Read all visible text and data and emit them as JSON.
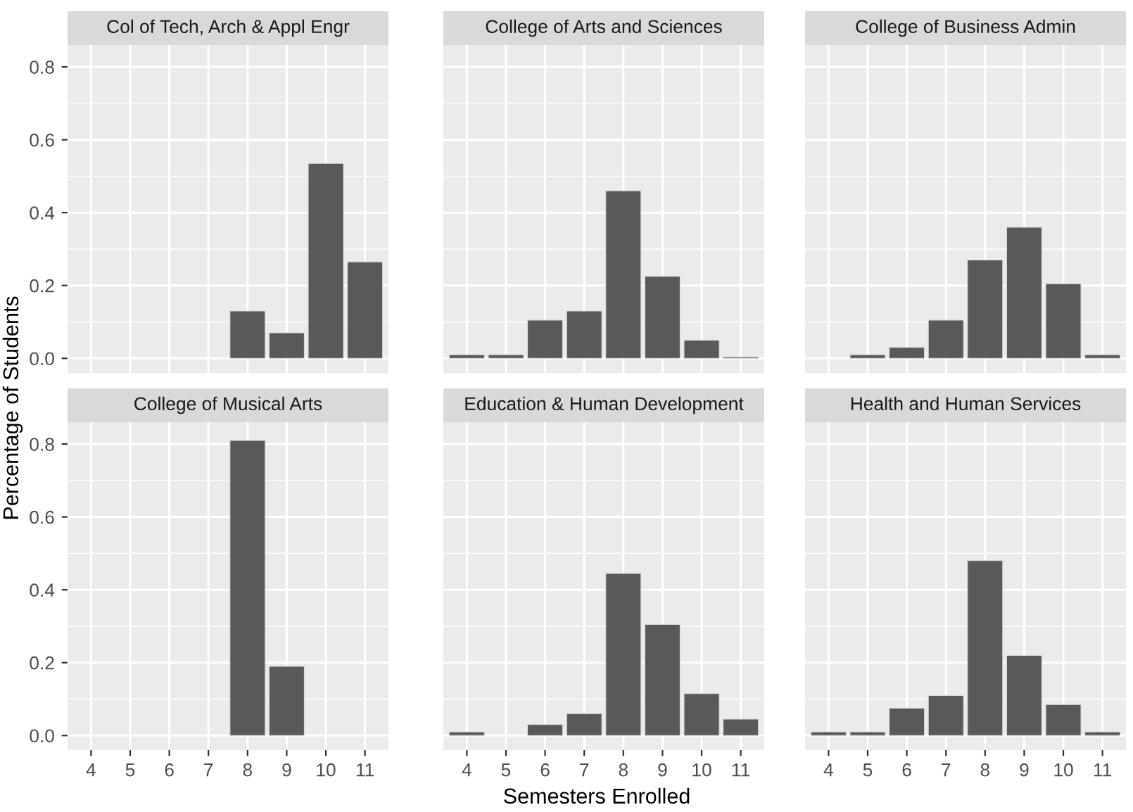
{
  "chart_data": [
    {
      "type": "bar",
      "title": "Col of Tech, Arch & Appl Engr",
      "categories": [
        "4",
        "5",
        "6",
        "7",
        "8",
        "9",
        "10",
        "11"
      ],
      "values": [
        null,
        null,
        null,
        null,
        0.13,
        0.07,
        0.535,
        0.265
      ],
      "color": "#595959",
      "ylim": [
        -0.04,
        0.86
      ],
      "yticks": [
        {
          "value": 0,
          "label": "0.0"
        },
        0.2,
        0.4,
        0.6,
        0.8
      ],
      "grid": true,
      "tick_labels": "y"
    },
    {
      "type": "bar",
      "title": "College of Arts and Sciences",
      "categories": [
        "4",
        "5",
        "6",
        "7",
        "8",
        "9",
        "10",
        "11"
      ],
      "values": [
        0.01,
        0.01,
        0.105,
        0.13,
        0.46,
        0.225,
        0.05,
        0.004
      ],
      "color": "#595959",
      "ylim": [
        -0.04,
        0.86
      ],
      "yticks": [
        0,
        0.2,
        0.4,
        0.6,
        0.8
      ],
      "grid": true,
      "tick_labels": false
    },
    {
      "type": "bar",
      "title": "College of Business Admin",
      "categories": [
        "4",
        "5",
        "6",
        "7",
        "8",
        "9",
        "10",
        "11"
      ],
      "values": [
        null,
        0.01,
        0.03,
        0.105,
        0.27,
        0.36,
        0.205,
        0.01
      ],
      "color": "#595959",
      "ylim": [
        -0.04,
        0.86
      ],
      "yticks": [
        0,
        0.2,
        0.4,
        0.6,
        0.8
      ],
      "grid": true,
      "tick_labels": false
    },
    {
      "type": "bar",
      "title": "College of Musical Arts",
      "ylabel": "Percentage of Students",
      "categories": [
        "4",
        "5",
        "6",
        "7",
        "8",
        "9",
        "10",
        "11"
      ],
      "values": [
        null,
        null,
        null,
        null,
        0.81,
        0.19,
        null,
        null
      ],
      "color": "#595959",
      "ylim": [
        -0.04,
        0.86
      ],
      "yticks": [
        {
          "value": 0,
          "label": "0.0"
        },
        0.2,
        0.4,
        0.6,
        0.8
      ],
      "grid": true
    },
    {
      "type": "bar",
      "title": "Education & Human Development",
      "xlabel": "Semesters Enrolled",
      "categories": [
        "4",
        "5",
        "6",
        "7",
        "8",
        "9",
        "10",
        "11"
      ],
      "values": [
        0.01,
        null,
        0.03,
        0.06,
        0.445,
        0.305,
        0.115,
        0.045
      ],
      "color": "#595959",
      "ylim": [
        -0.04,
        0.86
      ],
      "yticks": [
        0,
        0.2,
        0.4,
        0.6,
        0.8
      ],
      "grid": true,
      "tick_labels": "x"
    },
    {
      "type": "bar",
      "title": "Health and Human Services",
      "categories": [
        "4",
        "5",
        "6",
        "7",
        "8",
        "9",
        "10",
        "11"
      ],
      "values": [
        0.01,
        0.01,
        0.075,
        0.11,
        0.48,
        0.22,
        0.085,
        0.01
      ],
      "color": "#595959",
      "ylim": [
        -0.04,
        0.86
      ],
      "yticks": [
        0,
        0.2,
        0.4,
        0.6,
        0.8
      ],
      "grid": true,
      "tick_labels": "x"
    }
  ]
}
